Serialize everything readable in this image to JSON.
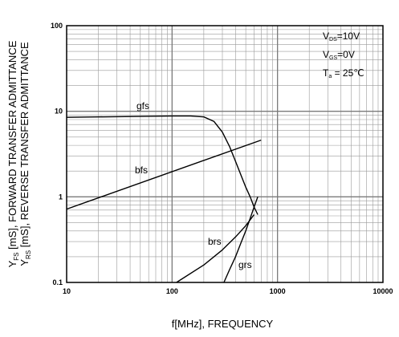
{
  "chart_data": {
    "type": "line",
    "x_scale": "log",
    "y_scale": "log",
    "xlim": [
      10,
      10000
    ],
    "ylim": [
      0.1,
      100
    ],
    "x_tick_labels": [
      "10",
      "100",
      "1000",
      "10000"
    ],
    "y_tick_labels": [
      "100",
      "10",
      "1",
      "0.1"
    ],
    "grid": true,
    "xlabel": "f[MHz], FREQUENCY",
    "ylabel_line1": {
      "main": "Y",
      "sub": "FS",
      "rest": " [mS], FORWARD TRANSFER ADMITTANCE"
    },
    "ylabel_line2": {
      "main": "Y",
      "sub": "RS",
      "rest": " [mS], REVERSE TRANSFER ADMITTANCE"
    },
    "conditions": [
      {
        "main": "V",
        "sub": "DS",
        "rest": "=10V"
      },
      {
        "main": "V",
        "sub": "GS",
        "rest": "=0V"
      },
      {
        "main": "T",
        "sub": "a",
        "rest": " = 25℃"
      }
    ],
    "series": [
      {
        "name": "gfs",
        "x": [
          10,
          20,
          50,
          100,
          150,
          200,
          250,
          300,
          350,
          400,
          450,
          500,
          550,
          600,
          650
        ],
        "y": [
          8.5,
          8.6,
          8.7,
          8.8,
          8.8,
          8.6,
          7.6,
          5.7,
          3.9,
          2.6,
          1.8,
          1.3,
          1.0,
          0.76,
          0.62
        ]
      },
      {
        "name": "bfs",
        "x": [
          10,
          700
        ],
        "y": [
          0.72,
          4.6
        ]
      },
      {
        "name": "brs",
        "x": [
          110,
          200,
          300,
          400,
          500,
          600
        ],
        "y": [
          0.1,
          0.16,
          0.24,
          0.34,
          0.46,
          0.62
        ]
      },
      {
        "name": "grs",
        "x": [
          310,
          350,
          400,
          450,
          500,
          550,
          600,
          650
        ],
        "y": [
          0.1,
          0.14,
          0.2,
          0.29,
          0.4,
          0.56,
          0.76,
          1.0
        ]
      }
    ]
  }
}
